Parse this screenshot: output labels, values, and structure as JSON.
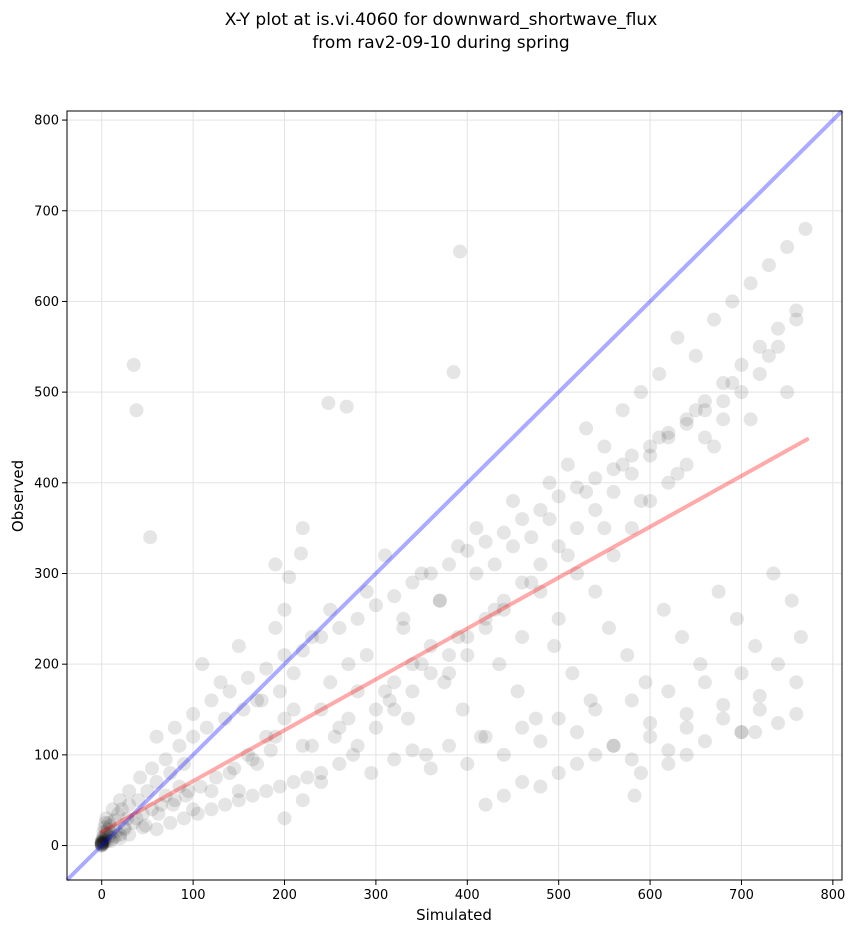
{
  "chart_data": {
    "type": "scatter",
    "title_lines": [
      "X-Y plot at is.vi.4060 for downward_shortwave_flux",
      "from rav2-09-10 during spring"
    ],
    "xlabel": "Simulated",
    "ylabel": "Observed",
    "xlim": [
      -38,
      810
    ],
    "ylim": [
      -38,
      810
    ],
    "xticks": [
      0,
      100,
      200,
      300,
      400,
      500,
      600,
      700,
      800
    ],
    "yticks": [
      0,
      100,
      200,
      300,
      400,
      500,
      600,
      700,
      800
    ],
    "grid": true,
    "point_color": "#000000",
    "point_alpha": 0.1,
    "identity_line": {
      "color": "#0000ff",
      "x": [
        -38,
        810
      ],
      "y": [
        -38,
        810
      ]
    },
    "fit_line": {
      "color": "#ff0000",
      "x": [
        0,
        772
      ],
      "y": [
        15,
        448
      ]
    },
    "series": [
      {
        "name": "observations",
        "x": [
          0,
          0,
          0,
          0,
          0,
          0,
          0,
          0,
          0,
          0,
          1,
          1,
          1,
          2,
          2,
          2,
          3,
          3,
          3,
          4,
          4,
          5,
          5,
          6,
          7,
          8,
          9,
          10,
          12,
          14,
          16,
          18,
          20,
          22,
          25,
          28,
          30,
          35,
          40,
          45,
          50,
          55,
          60,
          65,
          70,
          75,
          80,
          85,
          90,
          95,
          5,
          8,
          12,
          15,
          20,
          25,
          30,
          38,
          42,
          48,
          55,
          62,
          70,
          78,
          85,
          92,
          100,
          108,
          115,
          125,
          135,
          145,
          155,
          165,
          175,
          185,
          195,
          10,
          20,
          30,
          45,
          60,
          75,
          90,
          105,
          120,
          135,
          150,
          165,
          180,
          195,
          210,
          225,
          240,
          100,
          110,
          120,
          130,
          140,
          150,
          160,
          170,
          180,
          190,
          200,
          210,
          220,
          230,
          240,
          250,
          260,
          270,
          280,
          290,
          300,
          310,
          320,
          330,
          340,
          350,
          360,
          370,
          380,
          390,
          400,
          410,
          420,
          430,
          440,
          450,
          460,
          470,
          480,
          490,
          500,
          510,
          520,
          530,
          540,
          550,
          560,
          570,
          580,
          590,
          600,
          610,
          620,
          630,
          640,
          650,
          660,
          670,
          680,
          690,
          700,
          710,
          720,
          730,
          740,
          750,
          760,
          770,
          150,
          170,
          190,
          210,
          230,
          250,
          270,
          290,
          310,
          330,
          350,
          370,
          390,
          410,
          430,
          450,
          470,
          490,
          510,
          530,
          550,
          570,
          590,
          610,
          630,
          650,
          670,
          690,
          710,
          730,
          750,
          200,
          220,
          240,
          260,
          280,
          300,
          320,
          340,
          360,
          380,
          400,
          420,
          440,
          460,
          480,
          500,
          520,
          540,
          560,
          580,
          600,
          620,
          640,
          660,
          680,
          700,
          720,
          740,
          760,
          255,
          275,
          295,
          315,
          335,
          355,
          375,
          395,
          415,
          435,
          455,
          475,
          495,
          515,
          535,
          555,
          575,
          595,
          615,
          635,
          655,
          675,
          695,
          715,
          735,
          755,
          38,
          35,
          53,
          392,
          385,
          248,
          268,
          218,
          220,
          205,
          200,
          190,
          320,
          340,
          360,
          380,
          400,
          420,
          440,
          460,
          480,
          500,
          520,
          540,
          560,
          580,
          600,
          620,
          640,
          660,
          680,
          700,
          720,
          740,
          420,
          440,
          460,
          480,
          500,
          520,
          540,
          560,
          580,
          600,
          620,
          640,
          660,
          680,
          700,
          720,
          740,
          760,
          583,
          590,
          620,
          640,
          700,
          715,
          760,
          765,
          60,
          80,
          100,
          120,
          140,
          160,
          180,
          200,
          220,
          240,
          260,
          280,
          300,
          320,
          340,
          360,
          380,
          400,
          420,
          440,
          460,
          480,
          500,
          520,
          540,
          560,
          580,
          600,
          620,
          640,
          660,
          680
        ],
        "y": [
          0,
          1,
          2,
          3,
          5,
          0,
          2,
          4,
          1,
          3,
          5,
          8,
          2,
          10,
          4,
          15,
          6,
          20,
          3,
          8,
          25,
          12,
          30,
          5,
          18,
          10,
          22,
          14,
          8,
          28,
          16,
          35,
          12,
          40,
          20,
          30,
          45,
          25,
          50,
          35,
          60,
          40,
          70,
          45,
          55,
          80,
          50,
          65,
          90,
          60,
          15,
          25,
          40,
          10,
          50,
          18,
          60,
          30,
          75,
          22,
          85,
          35,
          95,
          45,
          110,
          55,
          120,
          65,
          130,
          75,
          140,
          85,
          150,
          95,
          160,
          105,
          170,
          5,
          8,
          12,
          20,
          18,
          25,
          30,
          35,
          40,
          45,
          50,
          55,
          60,
          65,
          70,
          75,
          80,
          40,
          200,
          60,
          180,
          80,
          220,
          100,
          160,
          120,
          240,
          140,
          190,
          110,
          230,
          150,
          260,
          130,
          200,
          170,
          280,
          150,
          320,
          180,
          250,
          200,
          300,
          220,
          270,
          190,
          330,
          210,
          350,
          240,
          310,
          260,
          380,
          230,
          340,
          280,
          400,
          250,
          420,
          300,
          460,
          280,
          440,
          320,
          480,
          350,
          500,
          380,
          520,
          400,
          560,
          420,
          540,
          450,
          580,
          470,
          600,
          500,
          620,
          520,
          640,
          550,
          660,
          580,
          680,
          60,
          90,
          120,
          150,
          110,
          180,
          140,
          210,
          170,
          240,
          200,
          270,
          230,
          300,
          260,
          330,
          290,
          360,
          320,
          390,
          350,
          420,
          380,
          450,
          410,
          480,
          440,
          510,
          470,
          540,
          500,
          30,
          50,
          70,
          90,
          110,
          130,
          150,
          170,
          190,
          210,
          230,
          250,
          270,
          290,
          310,
          330,
          350,
          370,
          390,
          410,
          430,
          450,
          470,
          490,
          510,
          530,
          550,
          570,
          590,
          120,
          100,
          80,
          160,
          140,
          100,
          180,
          150,
          120,
          200,
          170,
          140,
          220,
          190,
          160,
          240,
          210,
          180,
          260,
          230,
          200,
          280,
          250,
          220,
          300,
          270,
          480,
          530,
          340,
          655,
          522,
          488,
          484,
          322,
          350,
          296,
          260,
          310,
          95,
          105,
          85,
          110,
          90,
          120,
          100,
          130,
          115,
          140,
          125,
          150,
          110,
          160,
          135,
          170,
          145,
          180,
          155,
          190,
          165,
          200,
          45,
          55,
          70,
          65,
          80,
          90,
          100,
          110,
          95,
          120,
          105,
          130,
          115,
          140,
          125,
          150,
          135,
          145,
          55,
          80,
          90,
          100,
          125,
          125,
          180,
          230,
          120,
          130,
          145,
          160,
          170,
          185,
          195,
          210,
          215,
          230,
          240,
          250,
          265,
          275,
          290,
          300,
          310,
          325,
          335,
          345,
          360,
          370,
          385,
          395,
          405,
          415,
          430,
          440,
          455,
          465,
          480,
          490
        ]
      }
    ]
  }
}
